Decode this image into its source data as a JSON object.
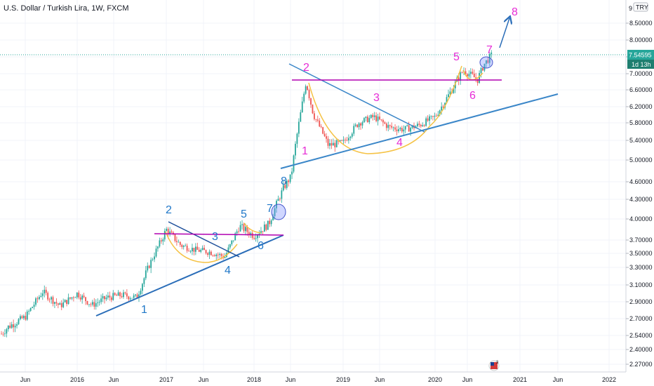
{
  "header": {
    "title": "U.S. Dollar / Turkish Lira, 1W, FXCM",
    "currency_badge": "TRY"
  },
  "price_tags": {
    "last_price": "7.54595",
    "countdown": "1d 13h",
    "top_partial": "9"
  },
  "colors": {
    "up_candle": "#26a69a",
    "down_candle": "#ef5350",
    "trendline_blue": "#2a6db8",
    "resistance_magenta": "#b100b1",
    "cup_curve": "#f5c244",
    "wave_blue": "#1f77c8",
    "wave_magenta": "#e62bd6",
    "price_tag": "#26a69a"
  },
  "chart_data": {
    "type": "candlestick",
    "title": "U.S. Dollar / Turkish Lira, 1W, FXCM",
    "ylim": [
      2.2,
      9.1
    ],
    "y_ticks": [
      "9",
      "8.50000",
      "8.00000",
      "7.50000",
      "7.00000",
      "6.60000",
      "6.20000",
      "5.80000",
      "5.40000",
      "5.00000",
      "4.60000",
      "4.30000",
      "4.00000",
      "3.70000",
      "3.50000",
      "3.30000",
      "3.10000",
      "2.90000",
      "2.70000",
      "2.54000",
      "2.40000",
      "2.27000"
    ],
    "x_ticks": [
      "Jun",
      "2016",
      "Jun",
      "2017",
      "Jun",
      "2018",
      "Jun",
      "2019",
      "Jun",
      "2020",
      "Jun",
      "2021",
      "Jun",
      "2022"
    ],
    "x_range": [
      "2015-03",
      "2022-06"
    ],
    "price_path": [
      [
        "2015-03",
        2.45
      ],
      [
        "2015-05",
        2.62
      ],
      [
        "2015-07",
        2.72
      ],
      [
        "2015-09",
        3.02
      ],
      [
        "2015-11",
        2.85
      ],
      [
        "2016-01",
        3.0
      ],
      [
        "2016-03",
        2.86
      ],
      [
        "2016-05",
        2.95
      ],
      [
        "2016-07",
        2.98
      ],
      [
        "2016-09",
        2.95
      ],
      [
        "2016-11",
        3.4
      ],
      [
        "2017-01",
        3.85
      ],
      [
        "2017-03",
        3.62
      ],
      [
        "2017-05",
        3.55
      ],
      [
        "2017-07",
        3.52
      ],
      [
        "2017-09",
        3.45
      ],
      [
        "2017-11",
        3.9
      ],
      [
        "2018-01",
        3.76
      ],
      [
        "2018-03",
        3.93
      ],
      [
        "2018-05",
        4.5
      ],
      [
        "2018-06",
        4.7
      ],
      [
        "2018-08",
        6.8
      ],
      [
        "2018-09",
        6.0
      ],
      [
        "2018-11",
        5.3
      ],
      [
        "2019-01",
        5.35
      ],
      [
        "2019-03",
        5.8
      ],
      [
        "2019-05",
        5.95
      ],
      [
        "2019-07",
        5.7
      ],
      [
        "2019-09",
        5.65
      ],
      [
        "2019-11",
        5.75
      ],
      [
        "2020-01",
        5.95
      ],
      [
        "2020-03",
        6.5
      ],
      [
        "2020-05",
        7.1
      ],
      [
        "2020-07",
        6.85
      ],
      [
        "2020-08",
        7.3
      ],
      [
        "2020-09",
        7.55
      ]
    ],
    "last_value": 7.54595,
    "wave_labels_blue": [
      "1",
      "2",
      "3",
      "4",
      "5",
      "6",
      "7",
      "8"
    ],
    "wave_labels_magenta": [
      "1",
      "2",
      "3",
      "4",
      "5",
      "6",
      "7",
      "8"
    ]
  }
}
